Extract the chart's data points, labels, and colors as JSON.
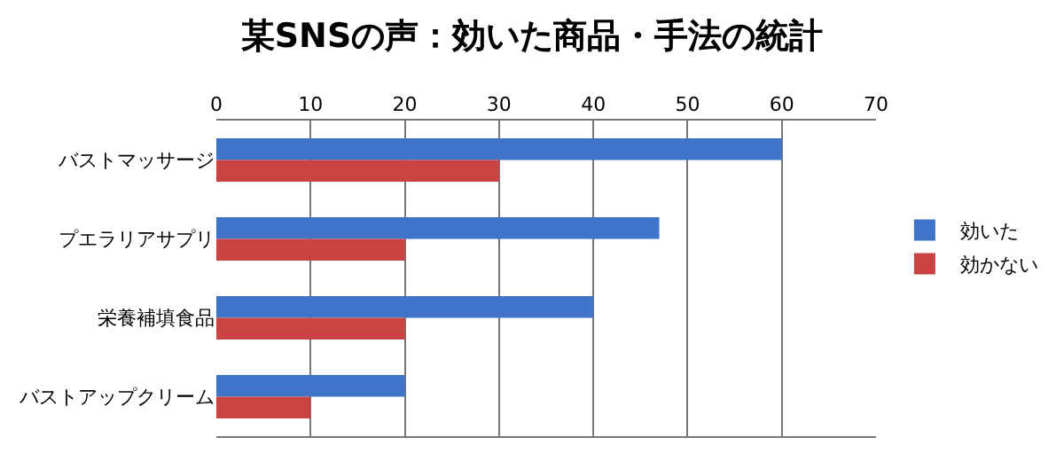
{
  "chart_data": {
    "type": "bar",
    "orientation": "horizontal",
    "title": "某SNSの声：効いた商品・手法の統計",
    "categories": [
      "バストマッサージ",
      "プエラリアサプリ",
      "栄養補填食品",
      "バストアップクリーム"
    ],
    "series": [
      {
        "name": "効いた",
        "color": "#3f74c8",
        "values": [
          60,
          47,
          40,
          20
        ]
      },
      {
        "name": "効かない",
        "color": "#c94343",
        "values": [
          30,
          20,
          20,
          10
        ]
      }
    ],
    "xlim": [
      0,
      70
    ],
    "xticks": [
      0,
      10,
      20,
      30,
      40,
      50,
      60,
      70
    ],
    "grid": "x",
    "legend": "right"
  }
}
